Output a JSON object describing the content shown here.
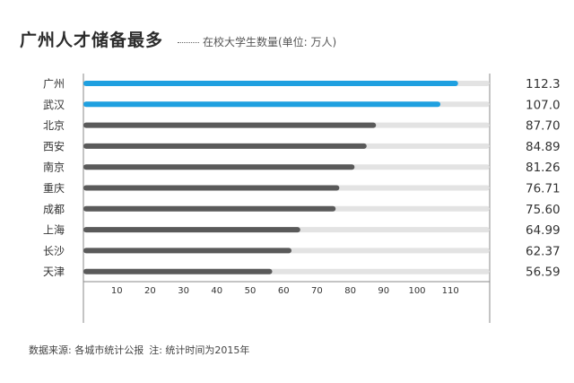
{
  "title": "广州人才储备最多",
  "subtitle": "在校大学生数量(单位: 万人)",
  "source": "数据来源: 各城市统计公报",
  "note": "注: 统计时间为2015年",
  "colors": {
    "highlight": "#1fa0e0",
    "normal": "#5a5a5a",
    "track": "#e3e3e3",
    "axis": "#888888"
  },
  "chart_data": {
    "type": "bar",
    "orientation": "horizontal",
    "title": "广州人才储备最多",
    "subtitle": "在校大学生数量(单位: 万人)",
    "xlabel": "",
    "ylabel": "",
    "xlim": [
      0,
      120
    ],
    "xticks": [
      10,
      20,
      30,
      40,
      50,
      60,
      70,
      80,
      90,
      100,
      110
    ],
    "categories": [
      "广州",
      "武汉",
      "北京",
      "西安",
      "南京",
      "重庆",
      "成都",
      "上海",
      "长沙",
      "天津"
    ],
    "values": [
      112.3,
      107.0,
      87.7,
      84.89,
      81.26,
      76.71,
      75.6,
      64.99,
      62.37,
      56.59
    ],
    "value_labels": [
      "112.3",
      "107.0",
      "87.70",
      "84.89",
      "81.26",
      "76.71",
      "75.60",
      "64.99",
      "62.37",
      "56.59"
    ],
    "highlighted": [
      "广州",
      "武汉"
    ]
  }
}
